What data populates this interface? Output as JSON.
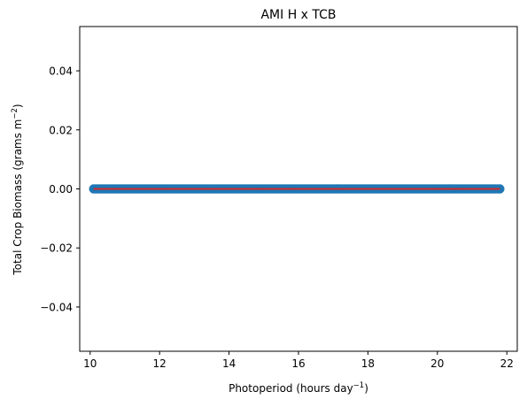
{
  "chart_data": {
    "type": "scatter",
    "title": "AMI H x TCB",
    "xlabel": "Photoperiod (hours day",
    "xlabel_sup": "−1",
    "xlabel_suffix": ")",
    "ylabel": "Total Crop Biomass (grams m",
    "ylabel_sup": "−2",
    "ylabel_suffix": ")",
    "xlim": [
      9.7,
      22.3
    ],
    "ylim": [
      -0.055,
      0.055
    ],
    "xticks": [
      10,
      12,
      14,
      16,
      18,
      20,
      22
    ],
    "xtick_labels": [
      "10",
      "12",
      "14",
      "16",
      "18",
      "20",
      "22"
    ],
    "yticks": [
      -0.04,
      -0.02,
      0.0,
      0.02,
      0.04
    ],
    "ytick_labels": [
      "−0.04",
      "−0.02",
      "0.00",
      "0.02",
      "0.04"
    ],
    "grid": false,
    "series": [
      {
        "kind": "scatter",
        "color": "#1f77b4",
        "x_range": [
          10.1,
          21.8
        ],
        "y_value": 0.0,
        "count": 200
      },
      {
        "kind": "line",
        "color": "#d62728",
        "x": [
          10.1,
          21.8
        ],
        "y": [
          0.0,
          0.0
        ]
      }
    ]
  }
}
